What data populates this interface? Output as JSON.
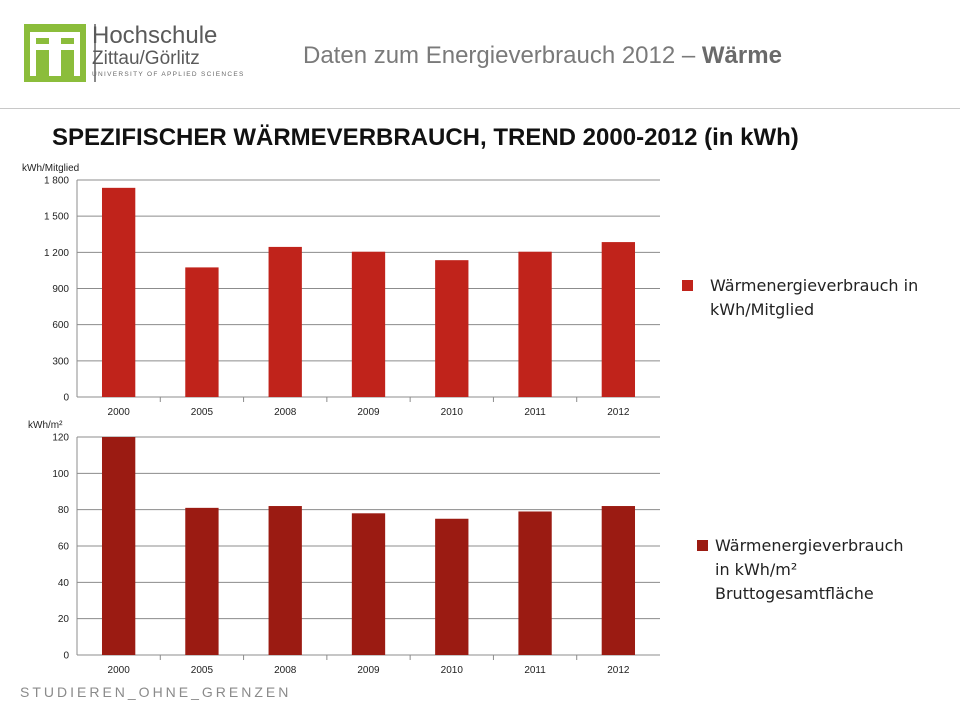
{
  "header": {
    "logo": {
      "line1": "Hochschule",
      "line2": "Zittau/Görlitz",
      "line3": "UNIVERSITY OF APPLIED SCIENCES"
    },
    "title_prefix": "Daten zum Energieverbrauch 2012 – ",
    "title_bold": "Wärme"
  },
  "main_title": "SPEZIFISCHER WÄRMEVERBRAUCH, TREND  2000-2012 (in kWh)",
  "footer_text": "STUDIEREN_OHNE_GRENZEN",
  "chart_data": [
    {
      "type": "bar",
      "ylabel": "kWh/Mitglied",
      "categories": [
        "2000",
        "2005",
        "2008",
        "2009",
        "2010",
        "2011",
        "2012"
      ],
      "series": [
        {
          "name": "Wärmenergieverbrauch in kWh/Mitglied",
          "values": [
            1735,
            1075,
            1245,
            1205,
            1135,
            1205,
            1285
          ]
        }
      ],
      "ylim": [
        0,
        1800
      ],
      "yticks": [
        0,
        300,
        600,
        900,
        1200,
        1500,
        1800
      ],
      "ytick_labels": [
        "0",
        "300",
        "600",
        "900",
        "1 200",
        "1 500",
        "1 800"
      ],
      "legend_lines": [
        "Wärmenergieverbrauch in",
        "kWh/Mitglied"
      ],
      "color": "#c0231b",
      "grid": true,
      "legend_position": "right"
    },
    {
      "type": "bar",
      "ylabel": "kWh/m²",
      "categories": [
        "2000",
        "2005",
        "2008",
        "2009",
        "2010",
        "2011",
        "2012"
      ],
      "series": [
        {
          "name": "Wärmenergieverbrauch in kWh/m² Bruttogesamtfläche",
          "values": [
            120,
            81,
            82,
            78,
            75,
            79,
            82
          ]
        }
      ],
      "ylim": [
        0,
        120
      ],
      "yticks": [
        0,
        20,
        40,
        60,
        80,
        100,
        120
      ],
      "ytick_labels": [
        "0",
        "20",
        "40",
        "60",
        "80",
        "100",
        "120"
      ],
      "legend_lines": [
        "Wärmenergieverbrauch",
        "in kWh/m²",
        "Bruttogesamtfläche"
      ],
      "color": "#9b1b12",
      "grid": true,
      "legend_position": "right"
    }
  ]
}
